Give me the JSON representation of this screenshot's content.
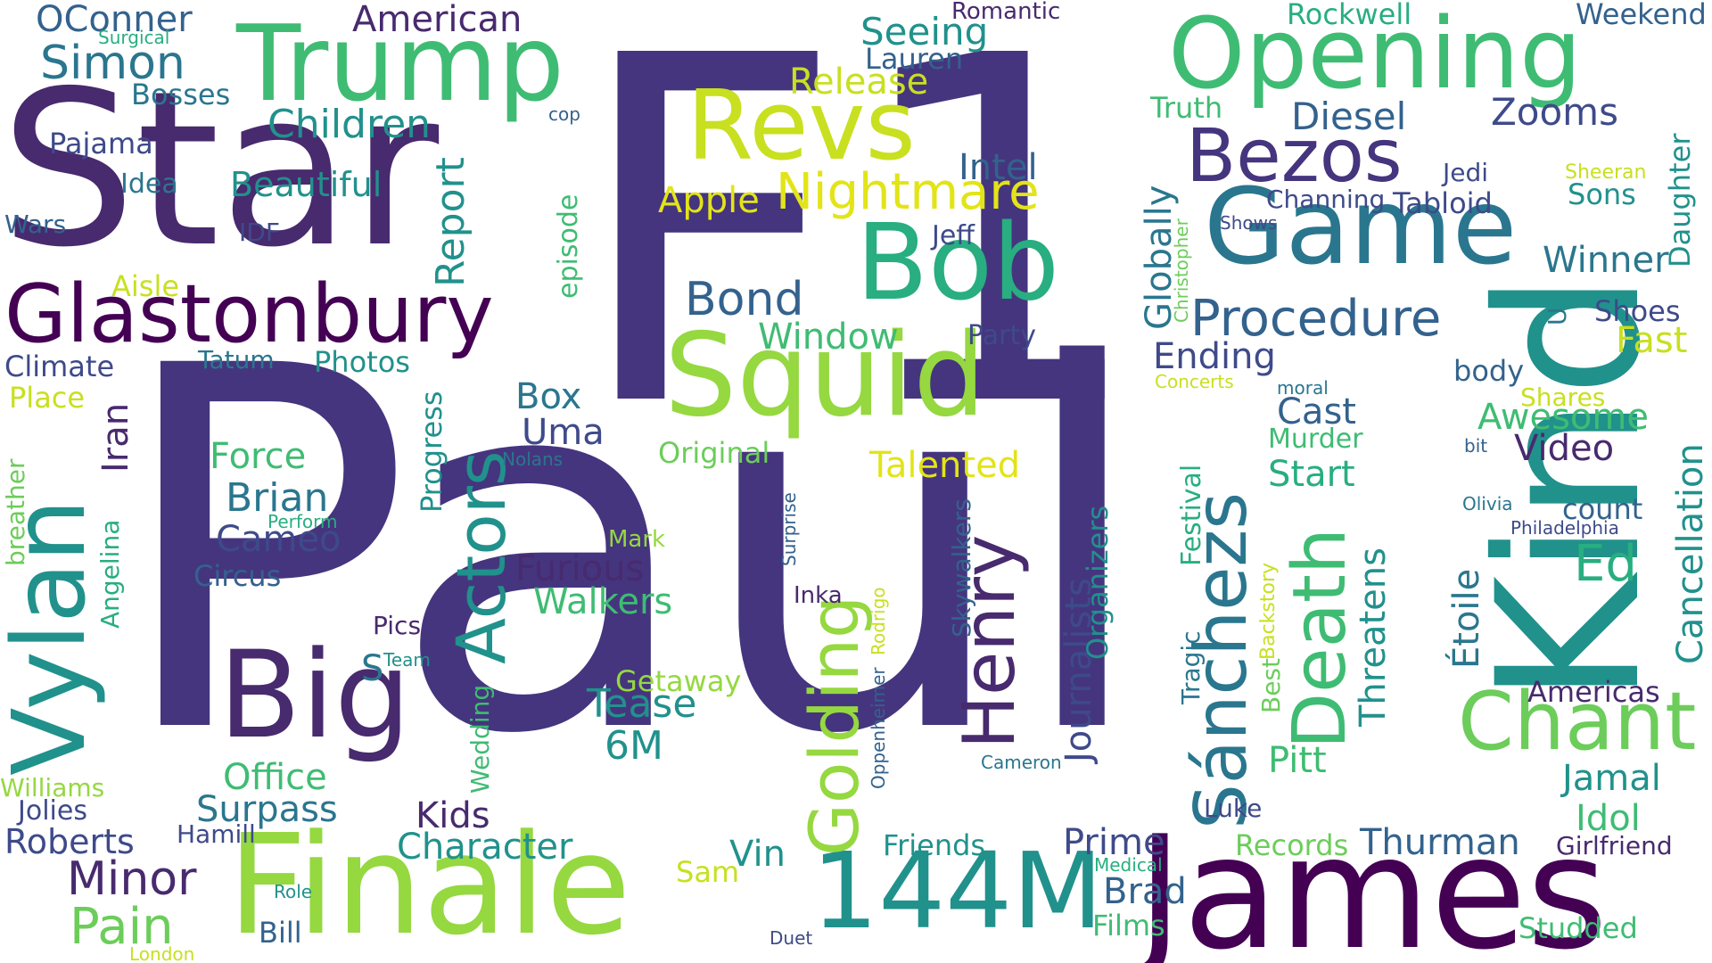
{
  "palette": {
    "p1": "#482a6e",
    "p2": "#45357e",
    "p3": "#3e4a8a",
    "p4": "#33628d",
    "p5": "#2a768e",
    "p6": "#21918c",
    "p7": "#28ae80",
    "p8": "#3fbc73",
    "p9": "#6ccd5a",
    "p10": "#95d840",
    "p11": "#c8e020",
    "p12": "#e2e418",
    "p13": "#440154"
  },
  "words": [
    {
      "text": "F1",
      "color": "p2"
    },
    {
      "text": "Paul",
      "color": "p2"
    },
    {
      "text": "Star",
      "color": "p1"
    },
    {
      "text": "Kind",
      "color": "p6"
    },
    {
      "text": "James",
      "color": "p13"
    },
    {
      "text": "Finale",
      "color": "p10"
    },
    {
      "text": "Trump",
      "color": "p8"
    },
    {
      "text": "Opening",
      "color": "p8"
    },
    {
      "text": "Game",
      "color": "p5"
    },
    {
      "text": "Squid",
      "color": "p10"
    },
    {
      "text": "Revs",
      "color": "p11"
    },
    {
      "text": "Bob",
      "color": "p7"
    },
    {
      "text": "Big",
      "color": "p1"
    },
    {
      "text": "Vylan",
      "color": "p6"
    },
    {
      "text": "Glastonbury",
      "color": "p13"
    },
    {
      "text": "144M",
      "color": "p6"
    },
    {
      "text": "Chant",
      "color": "p9"
    },
    {
      "text": "Bezos",
      "color": "p2"
    },
    {
      "text": "Henry",
      "color": "p1"
    },
    {
      "text": "Death",
      "color": "p8"
    },
    {
      "text": "Sánchezs",
      "color": "p5"
    },
    {
      "text": "Golding",
      "color": "p10"
    },
    {
      "text": "Actors",
      "color": "p6"
    },
    {
      "text": "Nightmare",
      "color": "p12"
    },
    {
      "text": "Procedure",
      "color": "p4"
    },
    {
      "text": "Cancellation",
      "color": "p6"
    },
    {
      "text": "Étoile",
      "color": "p5"
    },
    {
      "text": "OConner",
      "color": "p4"
    },
    {
      "text": "Simon",
      "color": "p5"
    },
    {
      "text": "American",
      "color": "p1"
    },
    {
      "text": "Romantic",
      "color": "p1"
    },
    {
      "text": "Surgical",
      "color": "p7"
    },
    {
      "text": "Seeing",
      "color": "p6"
    },
    {
      "text": "Lauren",
      "color": "p4"
    },
    {
      "text": "Release",
      "color": "p11"
    },
    {
      "text": "Bosses",
      "color": "p5"
    },
    {
      "text": "Pajama",
      "color": "p3"
    },
    {
      "text": "Children",
      "color": "p6"
    },
    {
      "text": "cop",
      "color": "p4"
    },
    {
      "text": "Rockwell",
      "color": "p7"
    },
    {
      "text": "Weekend",
      "color": "p4"
    },
    {
      "text": "Truth",
      "color": "p8"
    },
    {
      "text": "Diesel",
      "color": "p4"
    },
    {
      "text": "Zooms",
      "color": "p3"
    },
    {
      "text": "Idea",
      "color": "p5"
    },
    {
      "text": "Beautiful",
      "color": "p6"
    },
    {
      "text": "Intel",
      "color": "p4"
    },
    {
      "text": "Apple",
      "color": "p12"
    },
    {
      "text": "Wars",
      "color": "p4"
    },
    {
      "text": "IDF",
      "color": "p3"
    },
    {
      "text": "Report",
      "color": "p6"
    },
    {
      "text": "episode",
      "color": "p8"
    },
    {
      "text": "Jedi",
      "color": "p3"
    },
    {
      "text": "Sheeran",
      "color": "p11"
    },
    {
      "text": "Sons",
      "color": "p6"
    },
    {
      "text": "Daughter",
      "color": "p6"
    },
    {
      "text": "Channing",
      "color": "p3"
    },
    {
      "text": "Tabloid",
      "color": "p3"
    },
    {
      "text": "Shows",
      "color": "p3"
    },
    {
      "text": "Christopher",
      "color": "p9"
    },
    {
      "text": "Globally",
      "color": "p5"
    },
    {
      "text": "Jeff",
      "color": "p3"
    },
    {
      "text": "Winner",
      "color": "p5"
    },
    {
      "text": "Aisle",
      "color": "p11"
    },
    {
      "text": "Bond",
      "color": "p4"
    },
    {
      "text": "Window",
      "color": "p8"
    },
    {
      "text": "Party",
      "color": "p3"
    },
    {
      "text": "U",
      "color": "p5"
    },
    {
      "text": "Shoes",
      "color": "p3"
    },
    {
      "text": "Fast",
      "color": "p11"
    },
    {
      "text": "Climate",
      "color": "p3"
    },
    {
      "text": "Tatum",
      "color": "p5"
    },
    {
      "text": "Photos",
      "color": "p6"
    },
    {
      "text": "Ending",
      "color": "p3"
    },
    {
      "text": "body",
      "color": "p4"
    },
    {
      "text": "Concerts",
      "color": "p11"
    },
    {
      "text": "moral",
      "color": "p5"
    },
    {
      "text": "Place",
      "color": "p11"
    },
    {
      "text": "Iran",
      "color": "p1"
    },
    {
      "text": "Progress",
      "color": "p6"
    },
    {
      "text": "Box",
      "color": "p5"
    },
    {
      "text": "Cast",
      "color": "p4"
    },
    {
      "text": "Shares",
      "color": "p11"
    },
    {
      "text": "Uma",
      "color": "p3"
    },
    {
      "text": "Awesome",
      "color": "p8"
    },
    {
      "text": "Murder",
      "color": "p8"
    },
    {
      "text": "Original",
      "color": "p9"
    },
    {
      "text": "Talented",
      "color": "p12"
    },
    {
      "text": "bit",
      "color": "p4"
    },
    {
      "text": "Video",
      "color": "p1"
    },
    {
      "text": "breather",
      "color": "p9"
    },
    {
      "text": "Force",
      "color": "p8"
    },
    {
      "text": "Nolans",
      "color": "p5"
    },
    {
      "text": "Festival",
      "color": "p7"
    },
    {
      "text": "Start",
      "color": "p7"
    },
    {
      "text": "Brian",
      "color": "p5"
    },
    {
      "text": "Surprise",
      "color": "p4"
    },
    {
      "text": "Journalists",
      "color": "p3"
    },
    {
      "text": "Organizers",
      "color": "p6"
    },
    {
      "text": "Olivia",
      "color": "p5"
    },
    {
      "text": "count",
      "color": "p4"
    },
    {
      "text": "Ed",
      "color": "p7"
    },
    {
      "text": "Perform",
      "color": "p7"
    },
    {
      "text": "Cameo",
      "color": "p3"
    },
    {
      "text": "Backstory",
      "color": "p11"
    },
    {
      "text": "Philadelphia",
      "color": "p3"
    },
    {
      "text": "Angelina",
      "color": "p7"
    },
    {
      "text": "Mark",
      "color": "p10"
    },
    {
      "text": "Circus",
      "color": "p4"
    },
    {
      "text": "Furious",
      "color": "p1"
    },
    {
      "text": "Threatens",
      "color": "p6"
    },
    {
      "text": "Rodrigo",
      "color": "p11"
    },
    {
      "text": "Walkers",
      "color": "p8"
    },
    {
      "text": "Inka",
      "color": "p1"
    },
    {
      "text": "Skywalkers",
      "color": "p4"
    },
    {
      "text": "Pics",
      "color": "p1"
    },
    {
      "text": "Tragic",
      "color": "p5"
    },
    {
      "text": "S",
      "color": "p5"
    },
    {
      "text": "Team",
      "color": "p6"
    },
    {
      "text": "Best",
      "color": "p9"
    },
    {
      "text": "Getaway",
      "color": "p10"
    },
    {
      "text": "Americas",
      "color": "p1"
    },
    {
      "text": "Wedding",
      "color": "p8"
    },
    {
      "text": "Tease",
      "color": "p6"
    },
    {
      "text": "Oppenheimer",
      "color": "p4"
    },
    {
      "text": "6M",
      "color": "p6"
    },
    {
      "text": "Williams",
      "color": "p10"
    },
    {
      "text": "Office",
      "color": "p8"
    },
    {
      "text": "Pitt",
      "color": "p8"
    },
    {
      "text": "Cameron",
      "color": "p5"
    },
    {
      "text": "Jamal",
      "color": "p6"
    },
    {
      "text": "Surpass",
      "color": "p5"
    },
    {
      "text": "Jolies",
      "color": "p3"
    },
    {
      "text": "Kids",
      "color": "p1"
    },
    {
      "text": "Luke",
      "color": "p3"
    },
    {
      "text": "Idol",
      "color": "p8"
    },
    {
      "text": "Roberts",
      "color": "p3"
    },
    {
      "text": "Hamill",
      "color": "p3"
    },
    {
      "text": "Character",
      "color": "p6"
    },
    {
      "text": "Friends",
      "color": "p6"
    },
    {
      "text": "Prime",
      "color": "p3"
    },
    {
      "text": "Records",
      "color": "p9"
    },
    {
      "text": "Thurman",
      "color": "p4"
    },
    {
      "text": "Girlfriend",
      "color": "p1"
    },
    {
      "text": "Minor",
      "color": "p1"
    },
    {
      "text": "Vin",
      "color": "p6"
    },
    {
      "text": "Sam",
      "color": "p11"
    },
    {
      "text": "Medical",
      "color": "p7"
    },
    {
      "text": "Pain",
      "color": "p9"
    },
    {
      "text": "Role",
      "color": "p6"
    },
    {
      "text": "Brad",
      "color": "p4"
    },
    {
      "text": "Bill",
      "color": "p4"
    },
    {
      "text": "Films",
      "color": "p8"
    },
    {
      "text": "Studded",
      "color": "p8"
    },
    {
      "text": "London",
      "color": "p11"
    },
    {
      "text": "Duet",
      "color": "p3"
    }
  ]
}
